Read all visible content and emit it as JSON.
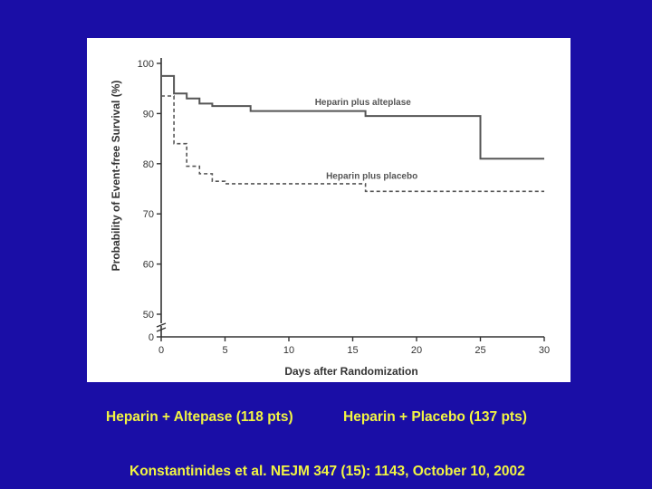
{
  "background_color": "#1a0ea6",
  "caption_color": "#f2f542",
  "captions": {
    "left": "Heparin + Altepase (118 pts)",
    "right": "Heparin + Placebo (137 pts)",
    "citation": "Konstantinides et al. NEJM 347 (15): 1143, October 10, 2002"
  },
  "chart_data": {
    "type": "line",
    "title": "",
    "xlabel": "Days after Randomization",
    "ylabel": "Probability of Event-free Survival (%)",
    "xlim": [
      0,
      30
    ],
    "ylim": [
      0,
      100
    ],
    "y_axis_break": "between 0 and 50",
    "x_ticks": [
      0,
      5,
      10,
      15,
      20,
      25,
      30
    ],
    "y_ticks": [
      0,
      50,
      60,
      70,
      80,
      90,
      100
    ],
    "grid": false,
    "legend": "inline labels",
    "series": [
      {
        "name": "Heparin plus alteplase",
        "style": "solid step",
        "color": "#555555",
        "x": [
          0,
          1,
          2,
          3,
          4,
          7,
          15,
          16,
          25,
          30
        ],
        "y": [
          97.5,
          94,
          93,
          92,
          91.5,
          90.5,
          90.5,
          89.5,
          81,
          81
        ]
      },
      {
        "name": "Heparin plus placebo",
        "style": "dashed step",
        "color": "#555555",
        "x": [
          0,
          1,
          2,
          3,
          4,
          5,
          16,
          30
        ],
        "y": [
          93.5,
          84,
          79.5,
          78,
          76.5,
          76,
          74.5,
          74.5
        ]
      }
    ]
  }
}
